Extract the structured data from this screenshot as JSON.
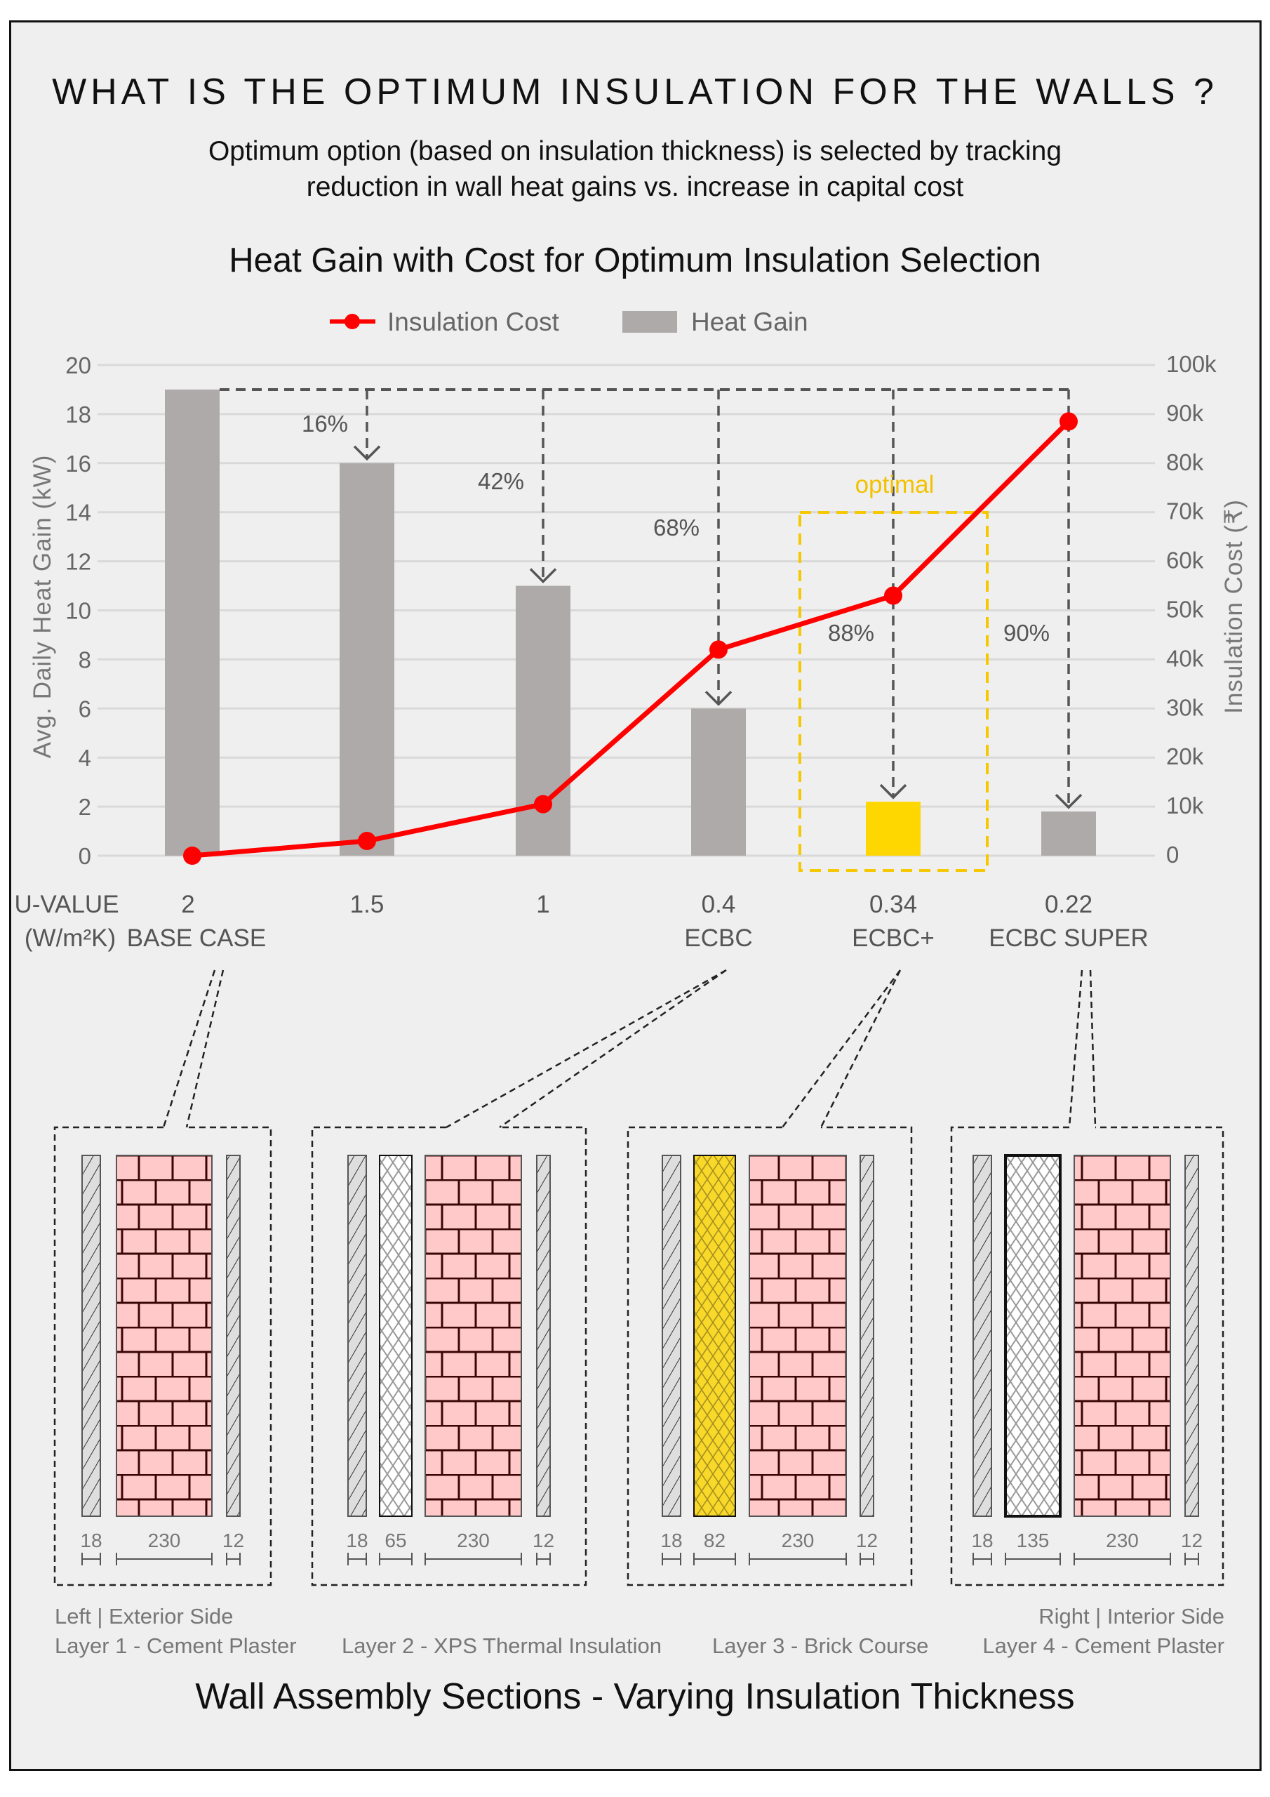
{
  "header": {
    "title": "WHAT IS THE OPTIMUM INSULATION FOR THE WALLS ?",
    "subtitle_line1": "Optimum option (based on insulation thickness) is selected by tracking",
    "subtitle_line2": "reduction in wall heat gains vs. increase in capital cost"
  },
  "chart_data": {
    "type": "bar",
    "title": "Heat Gain with Cost for Optimum Insulation Selection",
    "legend": {
      "placement": "top-center",
      "entries": [
        "Insulation Cost",
        "Heat Gain"
      ]
    },
    "x_header": [
      "U-VALUE",
      "(W/m²K)"
    ],
    "categories": [
      "2",
      "1.5",
      "1",
      "0.4",
      "0.34",
      "0.22"
    ],
    "category_sublabels": [
      "BASE CASE",
      "",
      "",
      "ECBC",
      "ECBC+",
      "ECBC SUPER"
    ],
    "ylabel": "Avg. Daily Heat Gain (kW)",
    "y2label": "Insulation Cost (₹)",
    "ylim": [
      0,
      20
    ],
    "y2lim": [
      0,
      100000
    ],
    "yticks": [
      "0",
      "2",
      "4",
      "6",
      "8",
      "10",
      "12",
      "14",
      "16",
      "18",
      "20"
    ],
    "y2ticks": [
      "0",
      "10k",
      "20k",
      "30k",
      "40k",
      "50k",
      "60k",
      "70k",
      "80k",
      "90k",
      "100k"
    ],
    "grid": true,
    "series": [
      {
        "name": "Heat Gain",
        "type": "bar",
        "values": [
          19,
          16,
          11,
          6,
          2.2,
          1.8
        ],
        "color": "#aeaaa9",
        "highlight_color": "#ffd700",
        "highlight_index": 4
      },
      {
        "name": "Insulation Cost",
        "type": "line",
        "values": [
          0,
          3000,
          10500,
          42000,
          53000,
          88500
        ],
        "color": "#ff0000"
      }
    ],
    "reductions": [
      "",
      "16%",
      "42%",
      "68%",
      "88%",
      "90%"
    ],
    "annotation": "optimal"
  },
  "sections": {
    "assemblies": [
      {
        "dims": [
          "18",
          "230",
          "12"
        ]
      },
      {
        "dims": [
          "18",
          "65",
          "230",
          "12"
        ]
      },
      {
        "dims": [
          "18",
          "82",
          "230",
          "12"
        ]
      },
      {
        "dims": [
          "18",
          "135",
          "230",
          "12"
        ]
      }
    ],
    "legend": {
      "left_side": "Left | Exterior Side",
      "right_side": "Right | Interior Side",
      "layers": [
        "Layer 1 - Cement Plaster",
        "Layer 2 - XPS Thermal Insulation",
        "Layer 3 - Brick Course",
        "Layer 4 - Cement Plaster"
      ]
    },
    "title": "Wall Assembly Sections - Varying Insulation Thickness"
  }
}
